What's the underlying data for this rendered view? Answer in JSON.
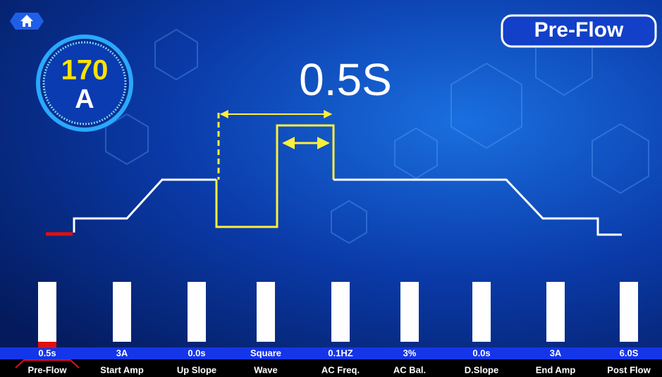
{
  "mode": "Pre-Flow",
  "current": {
    "value": "170",
    "unit": "A"
  },
  "display_value": "0.5S",
  "parameters": [
    {
      "value": "0.5s",
      "label": "Pre-Flow"
    },
    {
      "value": "3A",
      "label": "Start Amp"
    },
    {
      "value": "0.0s",
      "label": "Up Slope"
    },
    {
      "value": "Square",
      "label": "Wave"
    },
    {
      "value": "0.1HZ",
      "label": "AC Freq."
    },
    {
      "value": "3%",
      "label": "AC Bal."
    },
    {
      "value": "0.0s",
      "label": "D.Slope"
    },
    {
      "value": "3A",
      "label": "End Amp"
    },
    {
      "value": "6.0S",
      "label": "Post Flow"
    }
  ]
}
